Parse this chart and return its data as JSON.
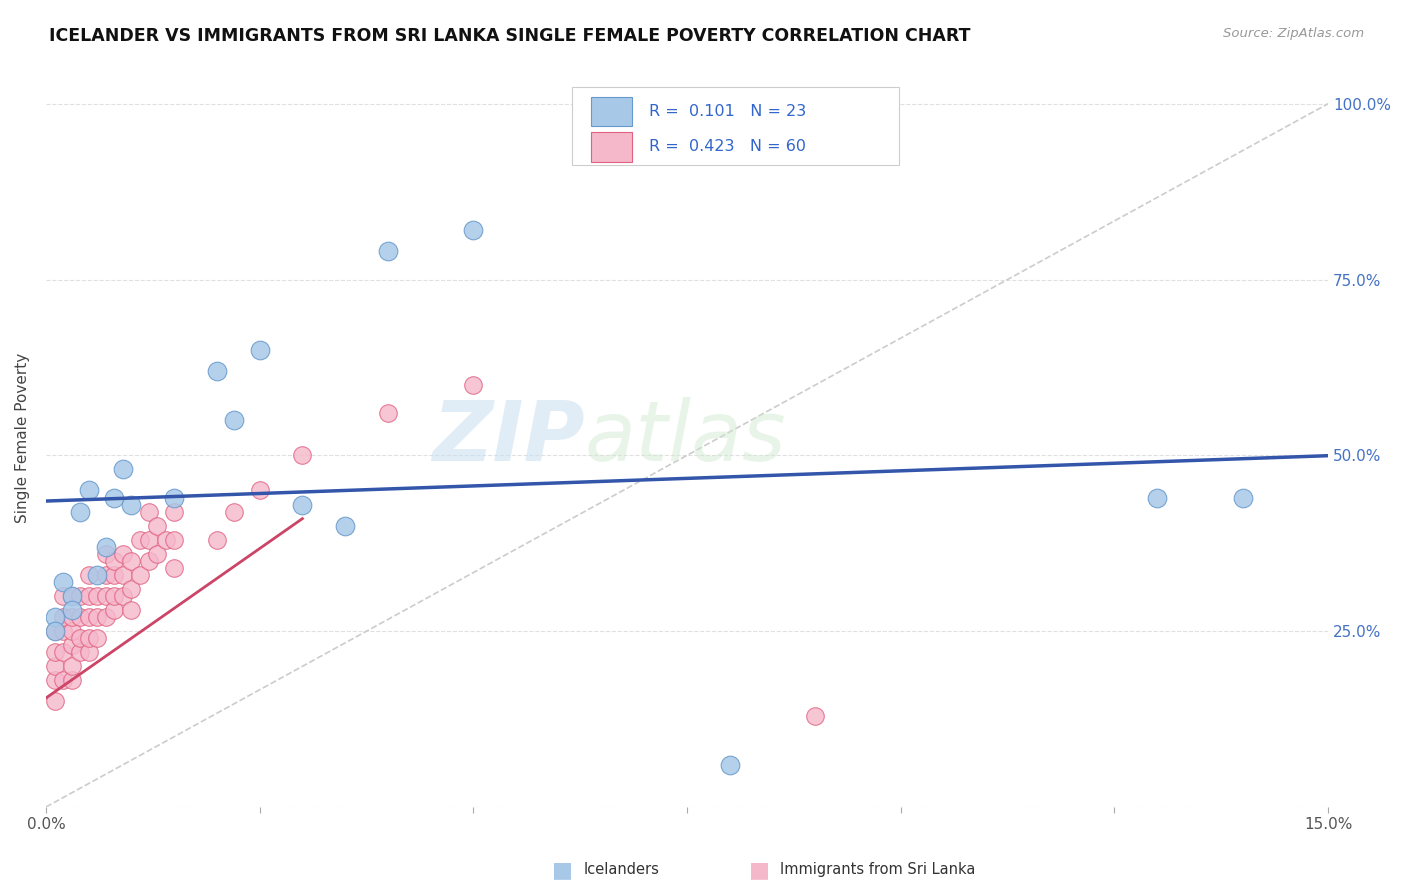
{
  "title": "ICELANDER VS IMMIGRANTS FROM SRI LANKA SINGLE FEMALE POVERTY CORRELATION CHART",
  "source": "Source: ZipAtlas.com",
  "ylabel": "Single Female Poverty",
  "xlim": [
    0.0,
    0.15
  ],
  "ylim": [
    0.0,
    1.05
  ],
  "watermark_zip": "ZIP",
  "watermark_atlas": "atlas",
  "icelander_color": "#a8c8e8",
  "srilanka_color": "#f5b8cb",
  "icelander_edge": "#6699cc",
  "srilanka_edge": "#e06080",
  "line_icelander": "#3355aa",
  "line_srilanka": "#cc4466",
  "diagonal_color": "#cccccc",
  "icelander_x": [
    0.001,
    0.001,
    0.002,
    0.003,
    0.003,
    0.004,
    0.005,
    0.006,
    0.007,
    0.008,
    0.009,
    0.01,
    0.015,
    0.02,
    0.022,
    0.025,
    0.03,
    0.035,
    0.04,
    0.05,
    0.08,
    0.13,
    0.14
  ],
  "icelander_y": [
    0.27,
    0.25,
    0.32,
    0.3,
    0.28,
    0.42,
    0.45,
    0.33,
    0.37,
    0.44,
    0.48,
    0.43,
    0.44,
    0.62,
    0.55,
    0.65,
    0.43,
    0.4,
    0.79,
    0.82,
    0.06,
    0.44,
    0.44
  ],
  "srilanka_x": [
    0.001,
    0.001,
    0.001,
    0.001,
    0.001,
    0.002,
    0.002,
    0.002,
    0.002,
    0.002,
    0.003,
    0.003,
    0.003,
    0.003,
    0.003,
    0.003,
    0.004,
    0.004,
    0.004,
    0.004,
    0.005,
    0.005,
    0.005,
    0.005,
    0.005,
    0.006,
    0.006,
    0.006,
    0.007,
    0.007,
    0.007,
    0.007,
    0.008,
    0.008,
    0.008,
    0.008,
    0.009,
    0.009,
    0.009,
    0.01,
    0.01,
    0.01,
    0.011,
    0.011,
    0.012,
    0.012,
    0.012,
    0.013,
    0.013,
    0.014,
    0.015,
    0.015,
    0.015,
    0.02,
    0.022,
    0.025,
    0.03,
    0.04,
    0.05,
    0.09
  ],
  "srilanka_y": [
    0.15,
    0.18,
    0.2,
    0.22,
    0.25,
    0.18,
    0.22,
    0.25,
    0.27,
    0.3,
    0.18,
    0.2,
    0.23,
    0.25,
    0.27,
    0.3,
    0.22,
    0.24,
    0.27,
    0.3,
    0.22,
    0.24,
    0.27,
    0.3,
    0.33,
    0.24,
    0.27,
    0.3,
    0.27,
    0.3,
    0.33,
    0.36,
    0.28,
    0.3,
    0.33,
    0.35,
    0.3,
    0.33,
    0.36,
    0.28,
    0.31,
    0.35,
    0.33,
    0.38,
    0.35,
    0.38,
    0.42,
    0.36,
    0.4,
    0.38,
    0.34,
    0.38,
    0.42,
    0.38,
    0.42,
    0.45,
    0.5,
    0.56,
    0.6,
    0.13
  ]
}
